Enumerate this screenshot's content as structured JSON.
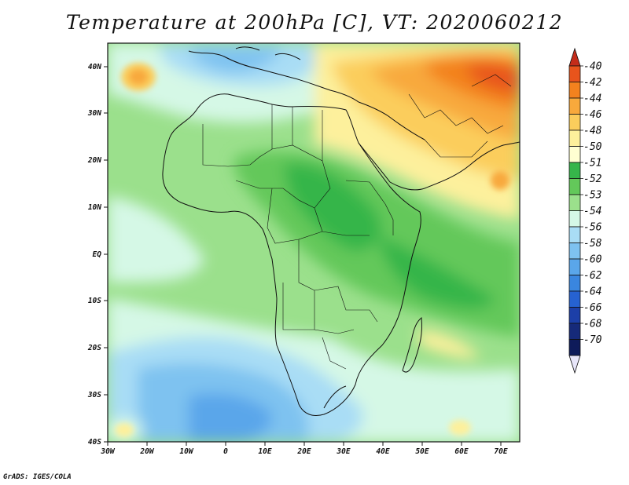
{
  "title": "Temperature at 200hPa [C], VT: 2020060212",
  "credit": "GrADS: IGES/COLA",
  "map": {
    "lon_ticks": [
      "30W",
      "20W",
      "10W",
      "0",
      "10E",
      "20E",
      "30E",
      "40E",
      "50E",
      "60E",
      "70E"
    ],
    "lat_ticks": [
      "40N",
      "30N",
      "20N",
      "10N",
      "EQ",
      "10S",
      "20S",
      "30S",
      "40S"
    ]
  },
  "colorbar": {
    "labels": [
      "-40",
      "-42",
      "-44",
      "-46",
      "-48",
      "-50",
      "-51",
      "-52",
      "-53",
      "-54",
      "-56",
      "-58",
      "-60",
      "-62",
      "-64",
      "-66",
      "-68",
      "-70"
    ],
    "colors": [
      "#c42c1a",
      "#e8541c",
      "#f3821e",
      "#f8a93c",
      "#fbcd5c",
      "#fdf09c",
      "#ffffd2",
      "#36b54a",
      "#63c85a",
      "#9be08c",
      "#d5f8e6",
      "#a9ddf5",
      "#7ec2f0",
      "#5aa6ea",
      "#3a86df",
      "#2662d1",
      "#1c3fa8",
      "#162a7a",
      "#0e1b5a"
    ],
    "over_color": "#c42c1a",
    "under_color": "#e8e6fa"
  }
}
